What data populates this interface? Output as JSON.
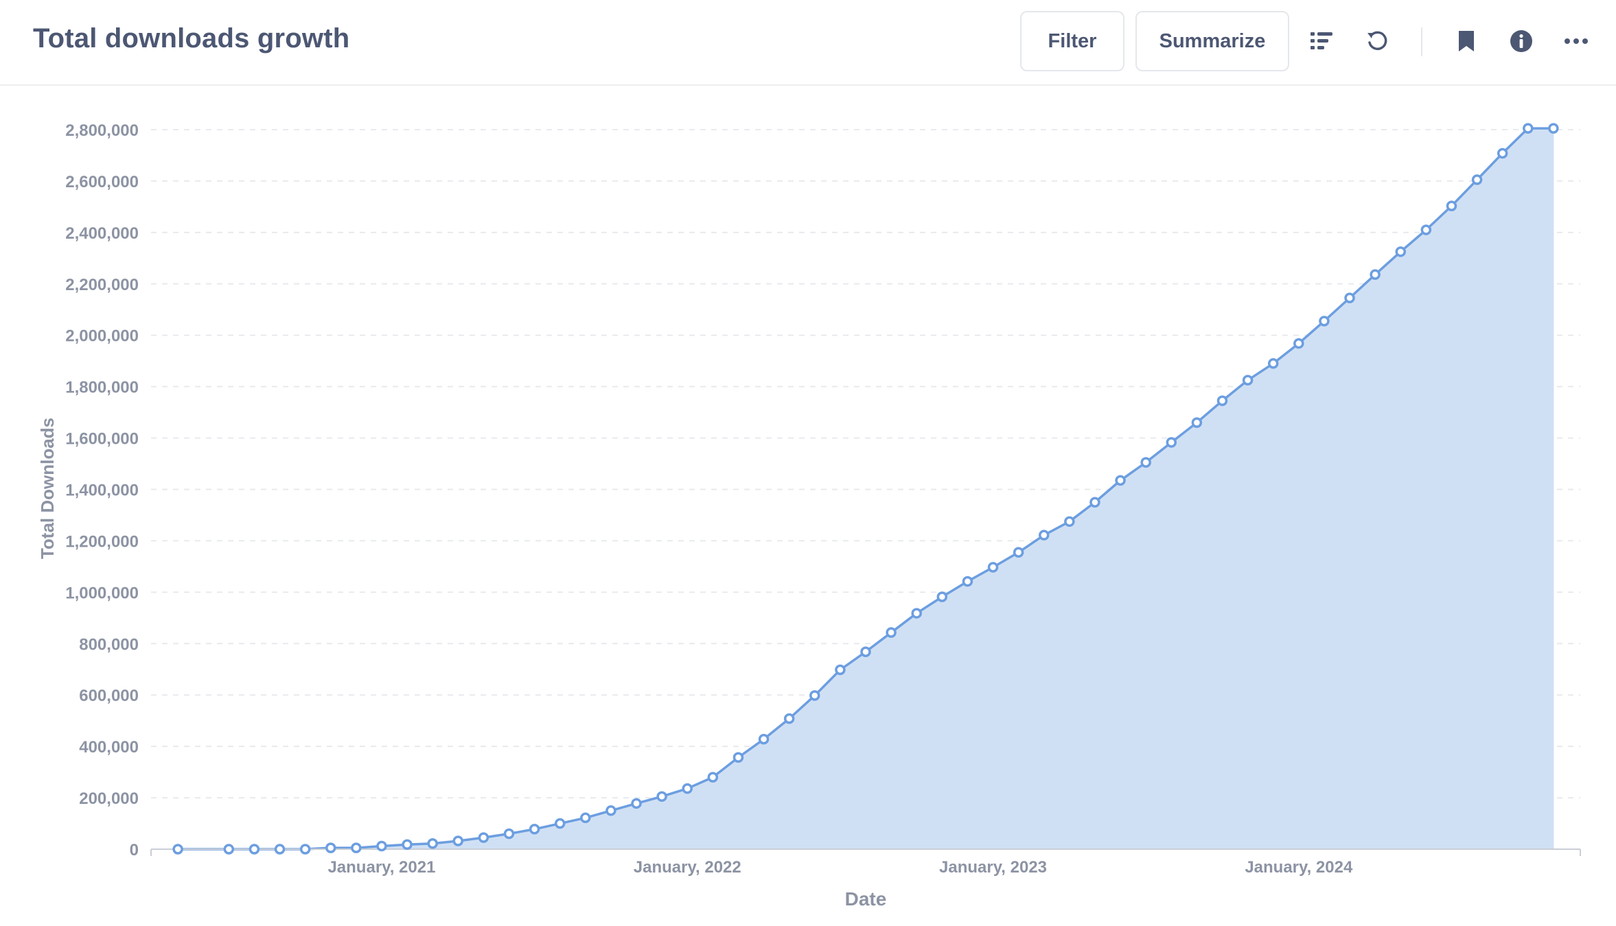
{
  "header": {
    "title": "Total downloads growth",
    "filter_label": "Filter",
    "summarize_label": "Summarize",
    "icons": [
      "list-icon",
      "refresh-icon",
      "bookmark-icon",
      "info-icon",
      "more-icon"
    ]
  },
  "colors": {
    "line": "#6c9ee0",
    "area": "#d0e0f4",
    "point_fill": "#ffffff",
    "axis_text": "#8c93a3",
    "grid": "#e8eaee",
    "title": "#4c5773"
  },
  "chart_data": {
    "type": "area",
    "xlabel": "Date",
    "ylabel": "Total Downloads",
    "ylim": [
      0,
      2800000
    ],
    "yticks": [
      0,
      200000,
      400000,
      600000,
      800000,
      1000000,
      1200000,
      1400000,
      1600000,
      1800000,
      2000000,
      2200000,
      2400000,
      2600000,
      2800000
    ],
    "ytick_labels": [
      "0",
      "200,000",
      "400,000",
      "600,000",
      "800,000",
      "1,000,000",
      "1,200,000",
      "1,400,000",
      "1,600,000",
      "1,800,000",
      "2,000,000",
      "2,200,000",
      "2,400,000",
      "2,600,000",
      "2,800,000"
    ],
    "xlim": [
      "2020-04",
      "2024-12"
    ],
    "xticks": [
      "2021-01",
      "2022-01",
      "2023-01",
      "2024-01"
    ],
    "xtick_labels": [
      "January, 2021",
      "January, 2022",
      "January, 2023",
      "January, 2024"
    ],
    "grid": true,
    "legend": "none",
    "series": [
      {
        "x": [
          "2020-05",
          "2020-07",
          "2020-08",
          "2020-09",
          "2020-10",
          "2020-11",
          "2020-12",
          "2021-01",
          "2021-02",
          "2021-03",
          "2021-04",
          "2021-05",
          "2021-06",
          "2021-07",
          "2021-08",
          "2021-09",
          "2021-10",
          "2021-11",
          "2021-12",
          "2022-01",
          "2022-02",
          "2022-03",
          "2022-04",
          "2022-05",
          "2022-06",
          "2022-07",
          "2022-08",
          "2022-09",
          "2022-10",
          "2022-11",
          "2022-12",
          "2023-01",
          "2023-02",
          "2023-03",
          "2023-04",
          "2023-05",
          "2023-06",
          "2023-07",
          "2023-08",
          "2023-09",
          "2023-10",
          "2023-11",
          "2023-12",
          "2024-01",
          "2024-02",
          "2024-03",
          "2024-04",
          "2024-05",
          "2024-06",
          "2024-07",
          "2024-08",
          "2024-09",
          "2024-10",
          "2024-11"
        ],
        "y": [
          0,
          0,
          0,
          0,
          0,
          5000,
          5000,
          12000,
          18000,
          22000,
          32000,
          45000,
          60000,
          78000,
          100000,
          122000,
          150000,
          178000,
          205000,
          236000,
          280000,
          357000,
          428000,
          508000,
          598000,
          698000,
          768000,
          843000,
          918000,
          982000,
          1042000,
          1097000,
          1155000,
          1222000,
          1275000,
          1350000,
          1435000,
          1505000,
          1583000,
          1660000,
          1745000,
          1825000,
          1890000,
          1968000,
          2055000,
          2145000,
          2236000,
          2325000,
          2410000,
          2503000,
          2605000,
          2708000,
          2805000,
          2805000
        ]
      }
    ]
  }
}
